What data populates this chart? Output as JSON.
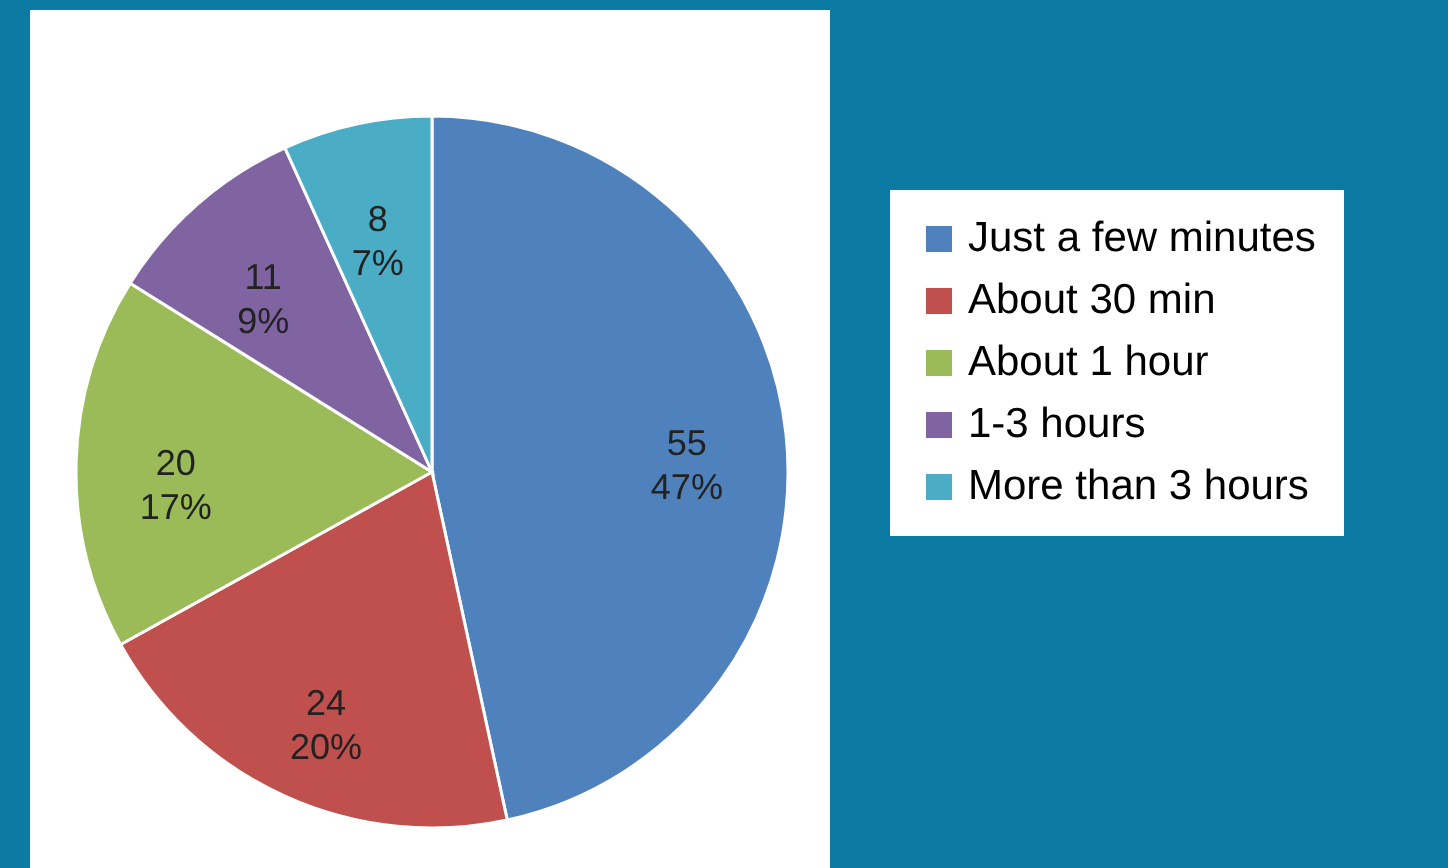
{
  "chart_data": {
    "type": "pie",
    "categories": [
      "Just a few minutes",
      "About 30 min",
      "About 1 hour",
      "1-3 hours",
      "More than 3 hours"
    ],
    "values": [
      55,
      24,
      20,
      11,
      8
    ],
    "colors": [
      "#4f81bd",
      "#c0504d",
      "#9bbb59",
      "#8064a2",
      "#4bacc6"
    ],
    "value_labels": [
      "55\n47%",
      "24\n20%",
      "20\n17%",
      "11\n9%",
      "8\n7%"
    ],
    "legend": "right"
  }
}
